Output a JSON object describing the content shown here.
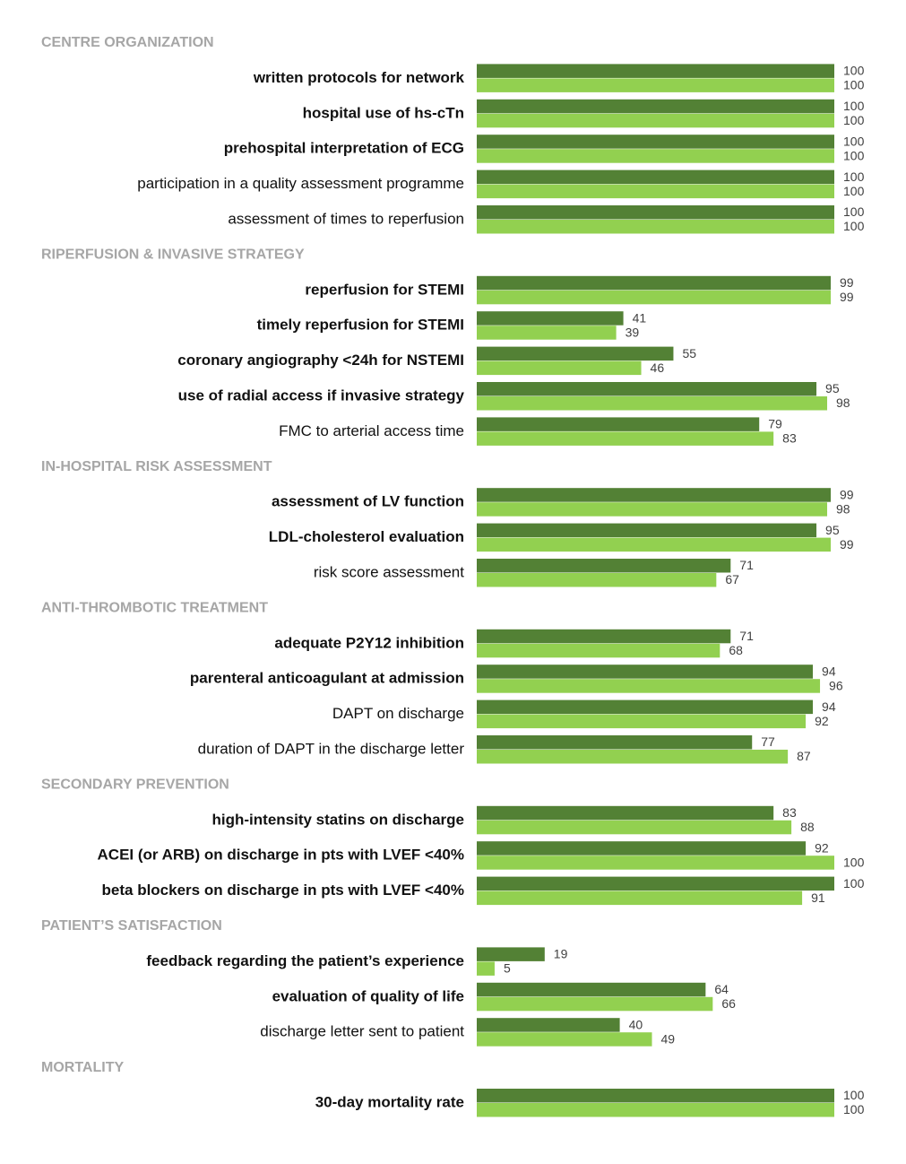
{
  "colors": {
    "series1": "#538135",
    "series2": "#92d050",
    "section_label": "#a6a6a6"
  },
  "chart_data": {
    "type": "bar",
    "orientation": "horizontal",
    "xlim": [
      0,
      100
    ],
    "grid": false,
    "legend": "none",
    "sections": [
      {
        "title": "CENTRE ORGANIZATION",
        "items": [
          {
            "label": "written protocols for network",
            "bold": true,
            "values": [
              100,
              100
            ]
          },
          {
            "label": "hospital use of hs-cTn",
            "bold": true,
            "values": [
              100,
              100
            ]
          },
          {
            "label": "prehospital interpretation of ECG",
            "bold": true,
            "values": [
              100,
              100
            ]
          },
          {
            "label": "participation in a quality assessment programme",
            "bold": false,
            "values": [
              100,
              100
            ]
          },
          {
            "label": "assessment of times to reperfusion",
            "bold": false,
            "values": [
              100,
              100
            ]
          }
        ]
      },
      {
        "title": "RIPERFUSION & INVASIVE STRATEGY",
        "items": [
          {
            "label": "reperfusion for STEMI",
            "bold": true,
            "values": [
              99,
              99
            ]
          },
          {
            "label": "timely reperfusion for STEMI",
            "bold": true,
            "values": [
              41,
              39
            ]
          },
          {
            "label": "coronary angiography <24h for NSTEMI",
            "bold": true,
            "values": [
              55,
              46
            ]
          },
          {
            "label": "use of radial access if invasive strategy",
            "bold": true,
            "values": [
              95,
              98
            ]
          },
          {
            "label": "FMC to arterial access time",
            "bold": false,
            "values": [
              79,
              83
            ]
          }
        ]
      },
      {
        "title": "IN-HOSPITAL RISK ASSESSMENT",
        "items": [
          {
            "label": "assessment of LV function",
            "bold": true,
            "values": [
              99,
              98
            ]
          },
          {
            "label": "LDL-cholesterol evaluation",
            "bold": true,
            "values": [
              95,
              99
            ]
          },
          {
            "label": "risk score assessment",
            "bold": false,
            "values": [
              71,
              67
            ]
          }
        ]
      },
      {
        "title": "ANTI-THROMBOTIC TREATMENT",
        "items": [
          {
            "label": "adequate P2Y12 inhibition",
            "bold": true,
            "values": [
              71,
              68
            ]
          },
          {
            "label": "parenteral anticoagulant at admission",
            "bold": true,
            "values": [
              94,
              96
            ]
          },
          {
            "label": "DAPT on discharge",
            "bold": false,
            "values": [
              94,
              92
            ]
          },
          {
            "label": "duration of DAPT in the discharge letter",
            "bold": false,
            "values": [
              77,
              87
            ]
          }
        ]
      },
      {
        "title": "SECONDARY PREVENTION",
        "items": [
          {
            "label": "high-intensity statins on discharge",
            "bold": true,
            "values": [
              83,
              88
            ]
          },
          {
            "label": "ACEI (or ARB) on discharge in pts with LVEF <40%",
            "bold": true,
            "values": [
              92,
              100
            ]
          },
          {
            "label": "beta blockers on discharge in pts with LVEF <40%",
            "bold": true,
            "values": [
              100,
              91
            ]
          }
        ]
      },
      {
        "title": "PATIENT’S SATISFACTION",
        "items": [
          {
            "label": "feedback regarding the patient’s experience",
            "bold": true,
            "values": [
              19,
              5
            ]
          },
          {
            "label": "evaluation of quality of life",
            "bold": true,
            "values": [
              64,
              66
            ]
          },
          {
            "label": "discharge letter sent to patient",
            "bold": false,
            "values": [
              40,
              49
            ]
          }
        ]
      },
      {
        "title": "MORTALITY",
        "items": [
          {
            "label": "30-day mortality rate",
            "bold": true,
            "values": [
              100,
              100
            ]
          }
        ]
      }
    ]
  }
}
